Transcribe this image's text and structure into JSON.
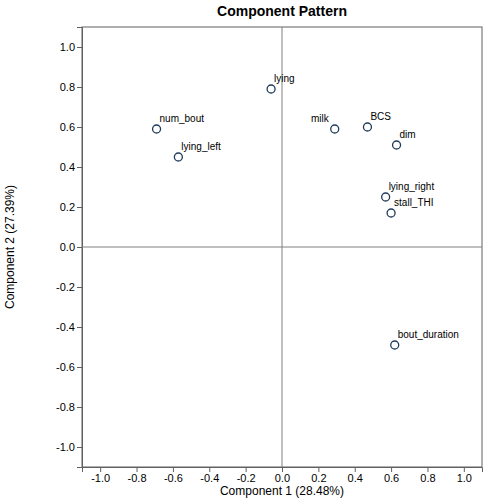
{
  "chart_data": {
    "type": "scatter",
    "title": "Component Pattern",
    "x_label": "Component 1 (28.48%)",
    "y_label": "Component 2 (27.39%)",
    "labels": [
      "lying",
      "num_bout",
      "lying_left",
      "milk",
      "BCS",
      "dim",
      "lying_right",
      "stall_THI",
      "bout_duration"
    ],
    "x": [
      -0.06,
      -0.69,
      -0.57,
      0.29,
      0.47,
      0.63,
      0.57,
      0.6,
      0.62
    ],
    "values": [
      0.79,
      0.59,
      0.45,
      0.59,
      0.6,
      0.51,
      0.25,
      0.17,
      -0.49
    ],
    "color": "#1f3b5c",
    "marker": "open_circle",
    "xlim": [
      -1.1,
      1.1
    ],
    "ylim": [
      -1.1,
      1.1
    ],
    "xticks": [
      {
        "value": -1,
        "label": "-1.0"
      },
      -0.8,
      -0.6,
      -0.4,
      -0.2,
      {
        "value": 0,
        "label": "0.0"
      },
      0.2,
      0.4,
      0.6,
      0.8,
      {
        "value": 1,
        "label": "1.0"
      }
    ],
    "yticks": [
      {
        "value": -1,
        "label": "-1.0"
      },
      -0.8,
      -0.6,
      -0.4,
      -0.2,
      {
        "value": 0,
        "label": "0.0"
      },
      0.2,
      0.4,
      0.6,
      0.8,
      {
        "value": 1,
        "label": "1.0"
      }
    ],
    "reference_lines": [
      {
        "axis": "x",
        "value": 0
      },
      {
        "axis": "y",
        "value": 0
      }
    ],
    "grid": false
  }
}
